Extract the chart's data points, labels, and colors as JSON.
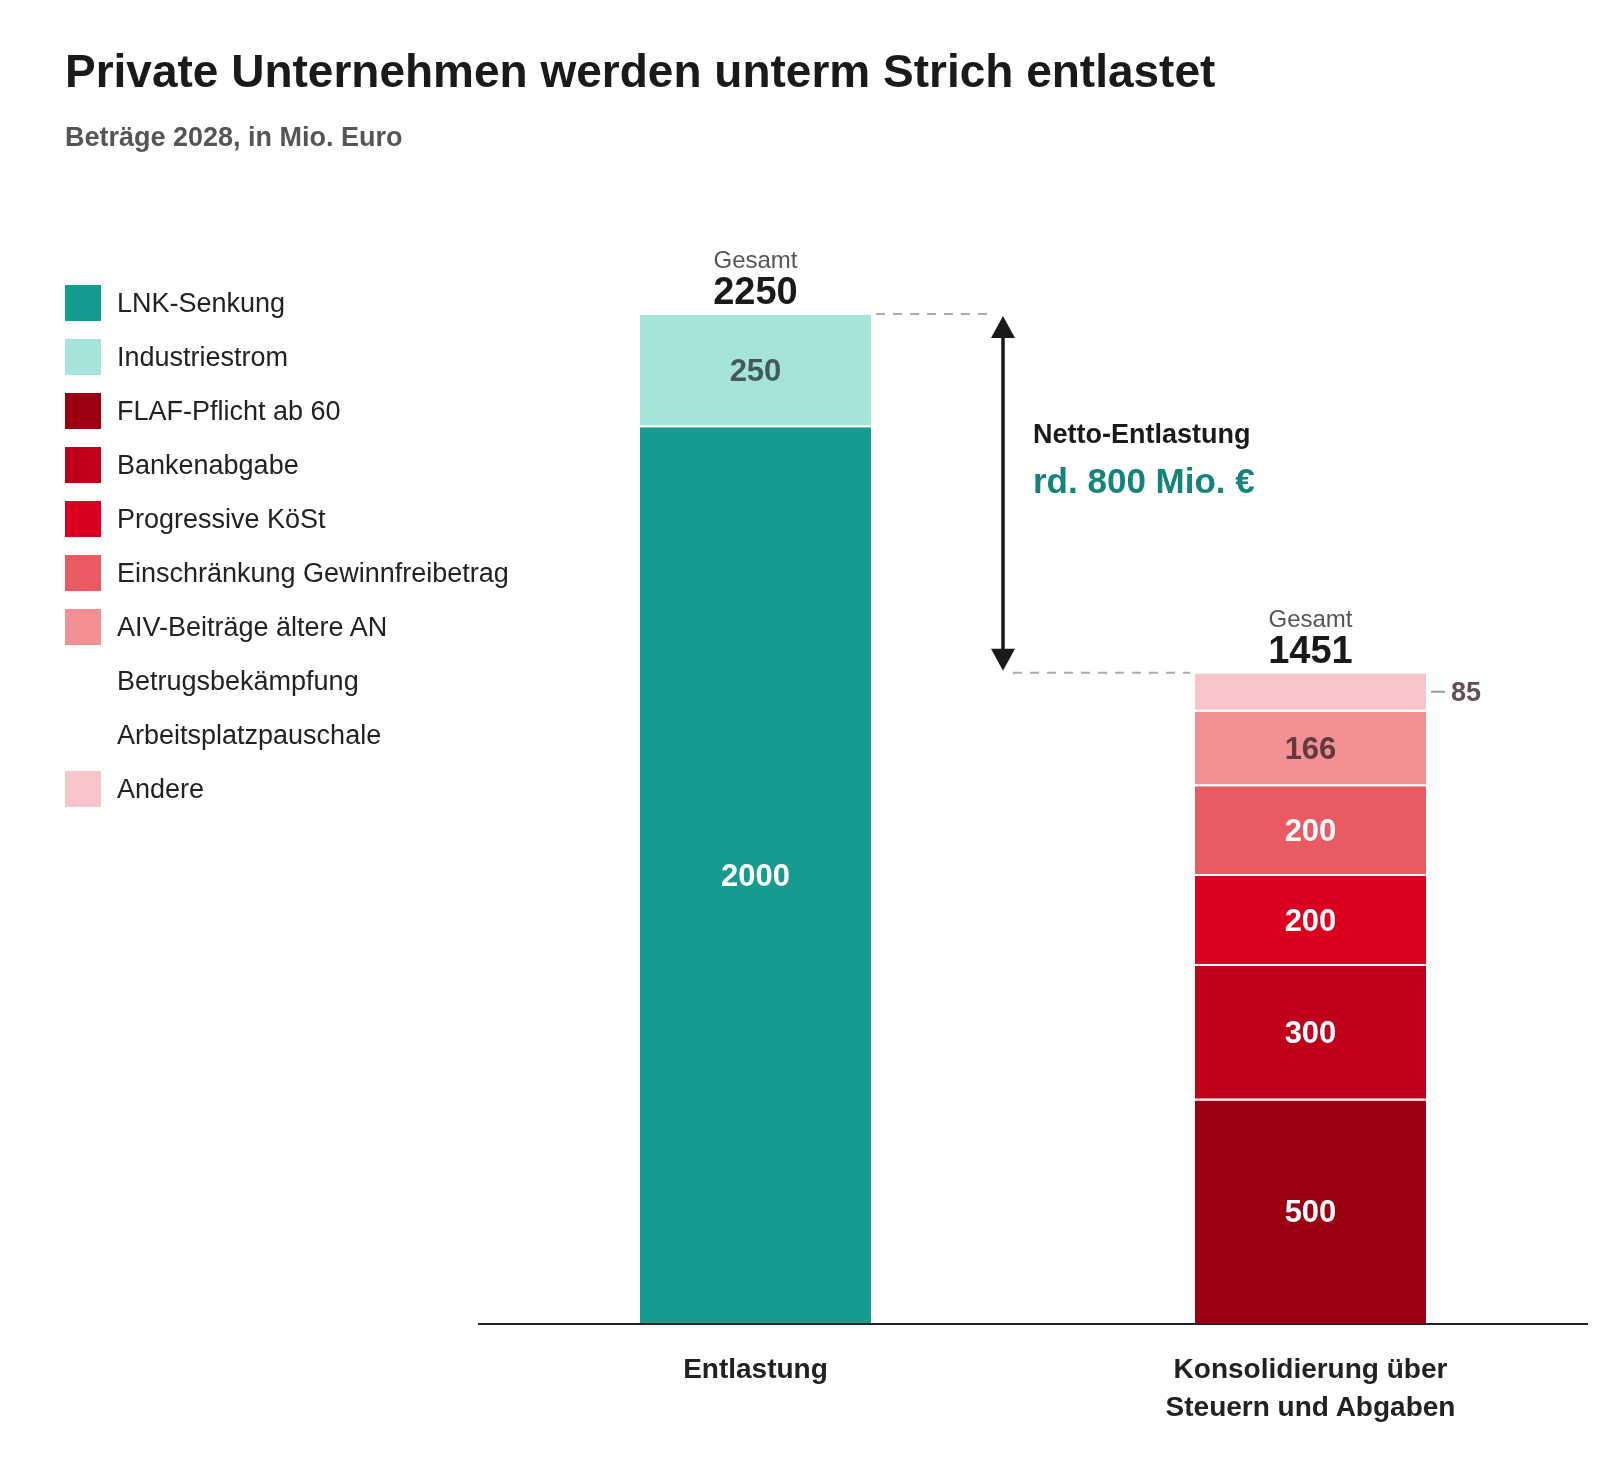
{
  "chart_data": {
    "type": "bar",
    "title": "Private Unternehmen werden unterm Strich entlastet",
    "subtitle": "Beträge 2028, in Mio. Euro",
    "categories": [
      "Entlastung",
      "Konsolidierung über Steuern und Abgaben"
    ],
    "stacked": true,
    "data_labels": true,
    "legend": "top left",
    "totals": [
      "2250",
      "1451"
    ],
    "series": [
      {
        "name": "LNK-Senkung",
        "color": "#179a8f",
        "values": [
          2000,
          null
        ]
      },
      {
        "name": "Industriestrom",
        "color": "#a6e3dd",
        "values": [
          250,
          null
        ]
      },
      {
        "name": "FLAF-Pflicht ab 60",
        "color": "#9b0012",
        "values": [
          null,
          500
        ]
      },
      {
        "name": "Bankenabgabe",
        "color": "#c0001a",
        "values": [
          null,
          300
        ]
      },
      {
        "name": "Progressive KöSt",
        "color": "#dc0020",
        "values": [
          null,
          200
        ]
      },
      {
        "name": "Einschränkung Gewinnfreibetrag",
        "color": "#ea5a63",
        "values": [
          null,
          200
        ]
      },
      {
        "name": "AIV-Beiträge ältere AN",
        "color": "#f29096",
        "values": [
          null,
          166
        ]
      },
      {
        "name": "Betrugsbekämpfung",
        "values": [
          null,
          null
        ]
      },
      {
        "name": "Arbeitsplatzpauschale",
        "values": [
          null,
          null
        ]
      },
      {
        "name": "Andere",
        "color": "#f8c6ca",
        "values": [
          null,
          85
        ]
      }
    ],
    "annotations": [
      {
        "text": "Gesamt",
        "x": "Entlastung",
        "y": 2250
      },
      {
        "text": "Gesamt",
        "x": "Konsolidierung über Steuern und Abgaben",
        "y": 1451
      },
      "Netto-Entlastung",
      "rd. 800 Mio. €"
    ]
  }
}
